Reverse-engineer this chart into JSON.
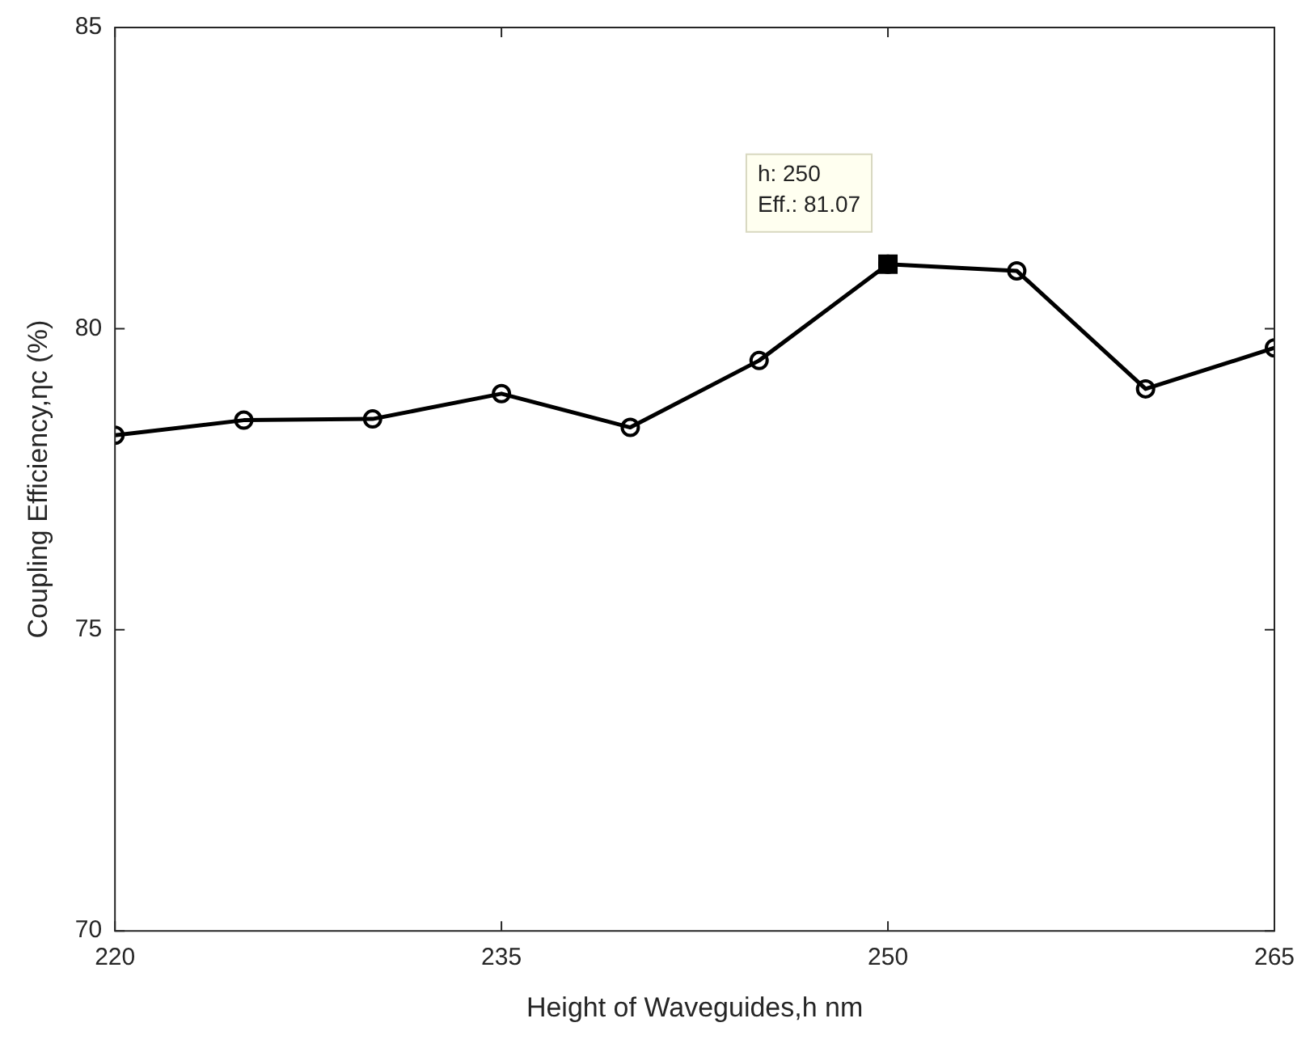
{
  "chart_data": {
    "type": "line",
    "xlabel": "Height of Waveguides,h nm",
    "ylabel": "Coupling Efficiency,ηc (%)",
    "x": [
      220,
      225,
      230,
      235,
      240,
      245,
      250,
      255,
      260,
      265
    ],
    "series": [
      {
        "color": "#000000",
        "values": [
          78.23,
          78.48,
          78.5,
          78.92,
          78.36,
          79.47,
          81.07,
          80.96,
          79.0,
          79.68
        ]
      }
    ],
    "xlim": [
      220,
      265
    ],
    "xticks": [
      220,
      235,
      250,
      265
    ],
    "ylim": [
      70,
      85
    ],
    "yticks": [
      70,
      75,
      80,
      85
    ],
    "grid": false,
    "legend": false,
    "marker": "circle",
    "line_style": "solid",
    "annotations": [
      {
        "text": "h: 250\nEff.: 81.07",
        "x": 250,
        "y": 81.07
      }
    ]
  }
}
